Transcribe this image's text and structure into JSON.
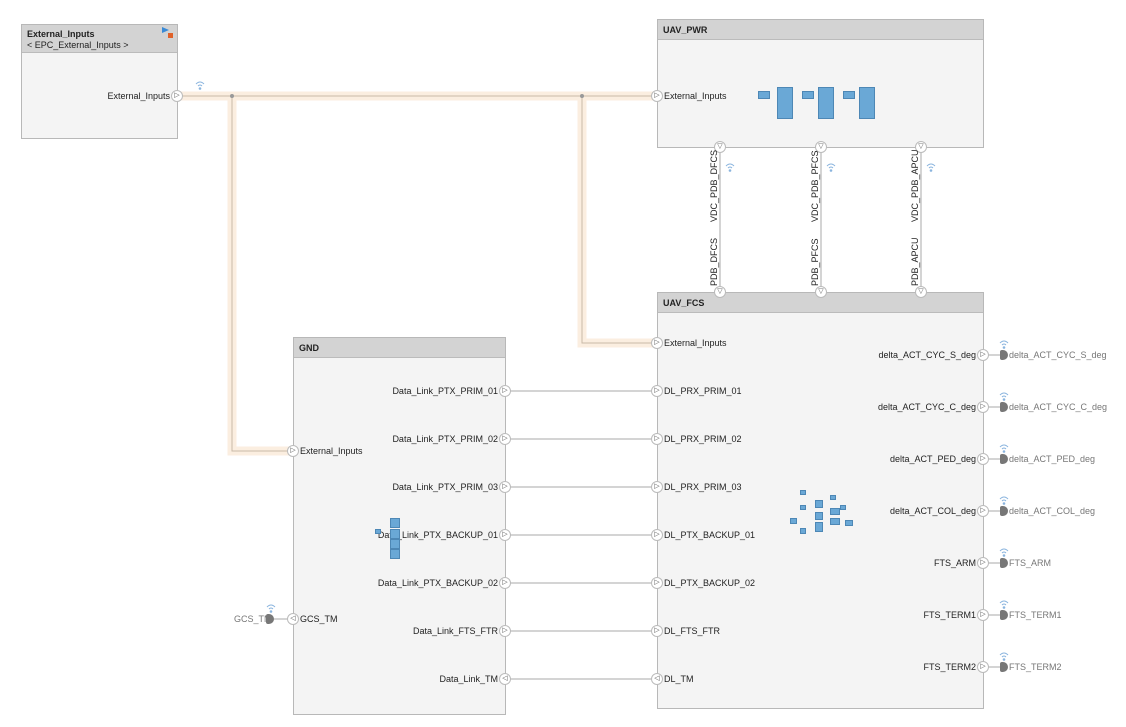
{
  "blocks": {
    "external_inputs": {
      "title": "External_Inputs",
      "subtitle": "< EPC_External_Inputs >",
      "out_port": "External_Inputs"
    },
    "uav_pwr": {
      "title": "UAV_PWR",
      "in_port": "External_Inputs",
      "out_ports": [
        "VDC_PDB_DFCS",
        "VDC_PDB_PFCS",
        "VDC_PDB_APCU"
      ]
    },
    "uav_fcs": {
      "title": "UAV_FCS",
      "in_top": [
        "PDB_DFCS",
        "PDB_PFCS",
        "PDB_APCU"
      ],
      "ext_port": "External_Inputs",
      "left_ports": [
        "DL_PRX_PRIM_01",
        "DL_PRX_PRIM_02",
        "DL_PRX_PRIM_03",
        "DL_PTX_BACKUP_01",
        "DL_PTX_BACKUP_02",
        "DL_FTS_FTR",
        "DL_TM"
      ],
      "right_ports": [
        "delta_ACT_CYC_S_deg",
        "delta_ACT_CYC_C_deg",
        "delta_ACT_PED_deg",
        "delta_ACT_COL_deg",
        "FTS_ARM",
        "FTS_TERM1",
        "FTS_TERM2"
      ]
    },
    "gnd": {
      "title": "GND",
      "ext_port": "External_Inputs",
      "gcs_port": "GCS_TM",
      "right_ports": [
        "Data_Link_PTX_PRIM_01",
        "Data_Link_PTX_PRIM_02",
        "Data_Link_PTX_PRIM_03",
        "Data_Link_PTX_BACKUP_01",
        "Data_Link_PTX_BACKUP_02",
        "Data_Link_FTS_FTR",
        "Data_Link_TM"
      ]
    }
  },
  "terminators": {
    "outputs": [
      "delta_ACT_CYC_S_deg",
      "delta_ACT_CYC_C_deg",
      "delta_ACT_PED_deg",
      "delta_ACT_COL_deg",
      "FTS_ARM",
      "FTS_TERM1",
      "FTS_TERM2"
    ],
    "gcs": "GCS_TM"
  },
  "colors": {
    "header": "#d3d3d3",
    "block": "#f4f4f4",
    "highlight": "#fbeee0",
    "subsystem_icon": "#6aa8d6"
  }
}
